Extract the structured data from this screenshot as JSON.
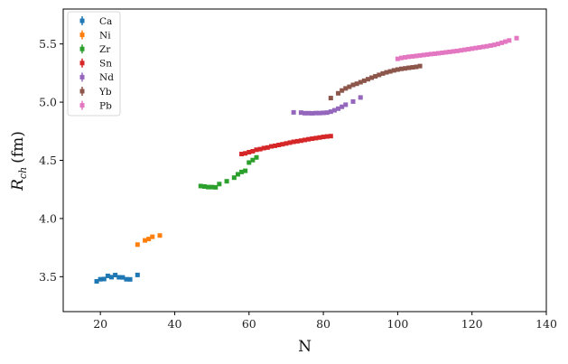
{
  "chart_data": {
    "type": "scatter",
    "title": "",
    "xlabel": "N",
    "ylabel_main": "R",
    "ylabel_sub": "ch",
    "ylabel_unit": "(fm)",
    "xlim": [
      10,
      140
    ],
    "ylim": [
      3.2,
      5.8
    ],
    "xticks": [
      20,
      40,
      60,
      80,
      100,
      120,
      140
    ],
    "yticks": [
      3.5,
      4.0,
      4.5,
      5.0,
      5.5
    ],
    "xtick_labels": [
      "20",
      "40",
      "60",
      "80",
      "100",
      "120",
      "140"
    ],
    "ytick_labels": [
      "3.5",
      "4.0",
      "4.5",
      "5.0",
      "5.5"
    ],
    "grid": false,
    "legend_position": "top-left",
    "series": [
      {
        "name": "Ca",
        "color": "#1f77b4",
        "x": [
          19,
          20,
          21,
          22,
          23,
          24,
          25,
          26,
          27,
          28,
          30
        ],
        "y": [
          3.46,
          3.478,
          3.48,
          3.507,
          3.496,
          3.514,
          3.495,
          3.494,
          3.478,
          3.477,
          3.515
        ]
      },
      {
        "name": "Ni",
        "color": "#ff7f0e",
        "x": [
          30,
          32,
          33,
          34,
          36
        ],
        "y": [
          3.776,
          3.812,
          3.824,
          3.843,
          3.854
        ]
      },
      {
        "name": "Zr",
        "color": "#2ca02c",
        "x": [
          47,
          48,
          49,
          50,
          51,
          52,
          54,
          56,
          57,
          58,
          59,
          60,
          61,
          62
        ],
        "y": [
          4.279,
          4.275,
          4.27,
          4.27,
          4.268,
          4.296,
          4.32,
          4.351,
          4.38,
          4.4,
          4.41,
          4.481,
          4.502,
          4.525
        ]
      },
      {
        "name": "Sn",
        "color": "#d62728",
        "x": [
          58,
          59,
          60,
          61,
          62,
          63,
          64,
          65,
          66,
          67,
          68,
          69,
          70,
          71,
          72,
          73,
          74,
          75,
          76,
          77,
          78,
          79,
          80,
          81,
          82
        ],
        "y": [
          4.554,
          4.56,
          4.57,
          4.578,
          4.591,
          4.596,
          4.605,
          4.61,
          4.62,
          4.625,
          4.632,
          4.638,
          4.645,
          4.652,
          4.659,
          4.664,
          4.669,
          4.675,
          4.681,
          4.686,
          4.691,
          4.696,
          4.701,
          4.705,
          4.708
        ]
      },
      {
        "name": "Nd",
        "color": "#9467bd",
        "x": [
          72,
          74,
          75,
          76,
          77,
          78,
          79,
          80,
          81,
          82,
          83,
          84,
          85,
          86,
          88,
          90
        ],
        "y": [
          4.912,
          4.91,
          4.905,
          4.905,
          4.904,
          4.906,
          4.906,
          4.908,
          4.91,
          4.918,
          4.93,
          4.944,
          4.96,
          4.978,
          5.005,
          5.04
        ]
      },
      {
        "name": "Yb",
        "color": "#8c564b",
        "x": [
          82,
          84,
          85,
          86,
          87,
          88,
          89,
          90,
          91,
          92,
          93,
          94,
          95,
          96,
          97,
          98,
          99,
          100,
          101,
          102,
          103,
          104,
          105,
          106
        ],
        "y": [
          5.035,
          5.076,
          5.1,
          5.118,
          5.132,
          5.148,
          5.158,
          5.171,
          5.184,
          5.197,
          5.21,
          5.222,
          5.234,
          5.246,
          5.256,
          5.264,
          5.273,
          5.28,
          5.286,
          5.29,
          5.295,
          5.299,
          5.303,
          5.31
        ]
      },
      {
        "name": "Pb",
        "color": "#e377c2",
        "x": [
          100,
          101,
          102,
          103,
          104,
          105,
          106,
          107,
          108,
          109,
          110,
          111,
          112,
          113,
          114,
          115,
          116,
          117,
          118,
          119,
          120,
          121,
          122,
          123,
          124,
          125,
          126,
          127,
          128,
          129,
          130,
          132
        ],
        "y": [
          5.372,
          5.38,
          5.385,
          5.39,
          5.393,
          5.397,
          5.401,
          5.405,
          5.409,
          5.413,
          5.416,
          5.42,
          5.424,
          5.428,
          5.432,
          5.436,
          5.44,
          5.445,
          5.45,
          5.455,
          5.46,
          5.465,
          5.47,
          5.475,
          5.48,
          5.486,
          5.492,
          5.5,
          5.51,
          5.52,
          5.53,
          5.55
        ]
      }
    ]
  }
}
